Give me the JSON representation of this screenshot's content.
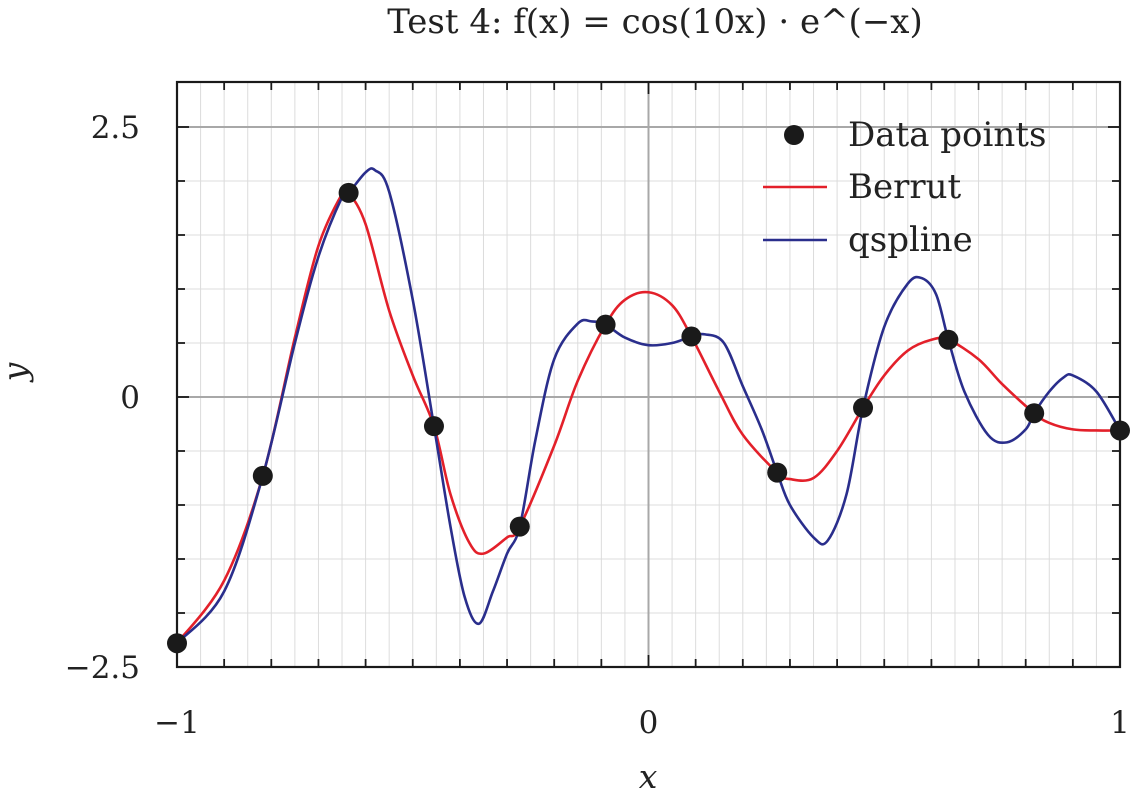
{
  "chart_data": {
    "type": "line",
    "title": "Test 4: f(x) = cos(10x) · e^(−x)",
    "xlabel": "x",
    "ylabel": "y",
    "xlim": [
      -1,
      1
    ],
    "ylim": [
      -2.5,
      2.5
    ],
    "x_ticks": [
      -1,
      0,
      1
    ],
    "x_tick_labels": [
      "−1",
      "0",
      "1"
    ],
    "y_ticks": [
      -2.5,
      0,
      2.5
    ],
    "y_tick_labels": [
      "−2.5",
      "0",
      "2.5"
    ],
    "grid": true,
    "legend_placement": "top-right",
    "legend": [
      {
        "name": "Data points",
        "marker": "dot",
        "color": "#1a1a1a"
      },
      {
        "name": "Berrut",
        "marker": "line",
        "color": "#e3202a"
      },
      {
        "name": "qspline",
        "marker": "line",
        "color": "#2a2e8c"
      }
    ],
    "points": {
      "name": "Data points",
      "x": [
        -1.0,
        -0.818,
        -0.636,
        -0.455,
        -0.273,
        -0.091,
        0.091,
        0.273,
        0.455,
        0.636,
        0.818,
        1.0
      ],
      "y": [
        -2.28,
        -0.73,
        1.89,
        -0.27,
        -1.2,
        0.67,
        0.56,
        -0.7,
        -0.1,
        0.53,
        -0.15,
        -0.31
      ]
    },
    "series": [
      {
        "name": "Berrut",
        "color": "#e3202a",
        "x": [
          -1.0,
          -0.9,
          -0.818,
          -0.75,
          -0.7,
          -0.65,
          -0.636,
          -0.6,
          -0.55,
          -0.5,
          -0.455,
          -0.42,
          -0.38,
          -0.35,
          -0.3,
          -0.273,
          -0.2,
          -0.15,
          -0.091,
          -0.05,
          0.0,
          0.05,
          0.091,
          0.15,
          0.2,
          0.273,
          0.3,
          0.35,
          0.4,
          0.455,
          0.5,
          0.55,
          0.6,
          0.636,
          0.7,
          0.75,
          0.818,
          0.85,
          0.9,
          0.95,
          1.0
        ],
        "y": [
          -2.28,
          -1.7,
          -0.73,
          0.55,
          1.4,
          1.88,
          1.89,
          1.6,
          0.8,
          0.2,
          -0.27,
          -0.9,
          -1.35,
          -1.45,
          -1.3,
          -1.2,
          -0.45,
          0.15,
          0.67,
          0.9,
          0.97,
          0.85,
          0.56,
          0.05,
          -0.35,
          -0.7,
          -0.76,
          -0.75,
          -0.5,
          -0.1,
          0.2,
          0.43,
          0.53,
          0.53,
          0.35,
          0.12,
          -0.15,
          -0.24,
          -0.3,
          -0.31,
          -0.31
        ]
      },
      {
        "name": "qspline",
        "color": "#2a2e8c",
        "x": [
          -1.0,
          -0.9,
          -0.818,
          -0.75,
          -0.7,
          -0.65,
          -0.636,
          -0.6,
          -0.58,
          -0.55,
          -0.5,
          -0.455,
          -0.42,
          -0.39,
          -0.36,
          -0.33,
          -0.3,
          -0.273,
          -0.24,
          -0.2,
          -0.15,
          -0.12,
          -0.091,
          -0.05,
          0.0,
          0.05,
          0.091,
          0.12,
          0.16,
          0.2,
          0.24,
          0.273,
          0.3,
          0.35,
          0.38,
          0.42,
          0.455,
          0.5,
          0.55,
          0.58,
          0.61,
          0.636,
          0.67,
          0.72,
          0.76,
          0.8,
          0.818,
          0.85,
          0.88,
          0.9,
          0.95,
          1.0
        ],
        "y": [
          -2.28,
          -1.8,
          -0.73,
          0.5,
          1.3,
          1.85,
          1.89,
          2.08,
          2.1,
          1.9,
          0.9,
          -0.27,
          -1.2,
          -1.85,
          -2.1,
          -1.8,
          -1.45,
          -1.2,
          -0.4,
          0.35,
          0.68,
          0.7,
          0.67,
          0.55,
          0.48,
          0.5,
          0.56,
          0.58,
          0.5,
          0.1,
          -0.3,
          -0.7,
          -1.0,
          -1.3,
          -1.33,
          -0.9,
          -0.1,
          0.65,
          1.05,
          1.1,
          0.95,
          0.53,
          0.05,
          -0.35,
          -0.42,
          -0.3,
          -0.15,
          0.05,
          0.18,
          0.2,
          0.05,
          -0.31
        ]
      }
    ]
  }
}
